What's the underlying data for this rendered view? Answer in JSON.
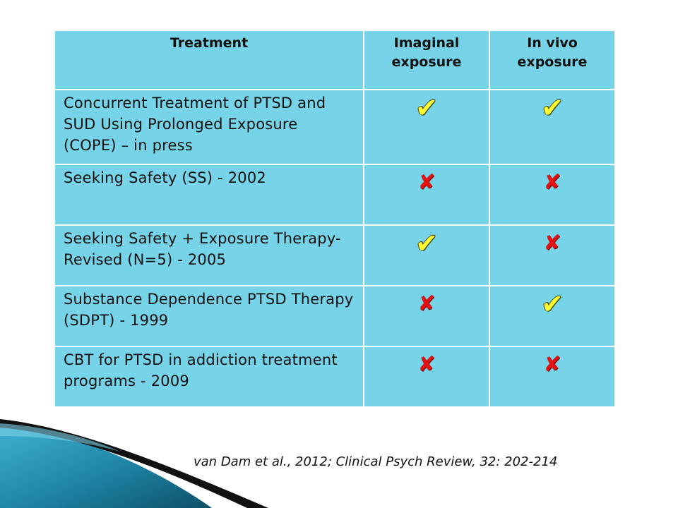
{
  "table": {
    "headers": [
      "Treatment",
      "Imaginal exposure",
      "In vivo exposure"
    ],
    "rows": [
      {
        "treatment": "Concurrent Treatment of PTSD and SUD Using Prolonged Exposure (COPE) – in press",
        "imaginal": "check",
        "in_vivo": "check"
      },
      {
        "treatment": "Seeking Safety (SS) - 2002",
        "imaginal": "cross",
        "in_vivo": "cross"
      },
      {
        "treatment": "Seeking Safety + Exposure Therapy-Revised (N=5) - 2005",
        "imaginal": "check",
        "in_vivo": "cross"
      },
      {
        "treatment": "Substance Dependence PTSD Therapy (SDPT) - 1999",
        "imaginal": "cross",
        "in_vivo": "check"
      },
      {
        "treatment": "CBT for PTSD in addiction treatment programs - 2009",
        "imaginal": "cross",
        "in_vivo": "cross"
      }
    ]
  },
  "marks": {
    "check_glyph": "✔",
    "cross_glyph": "✘",
    "check_color": "#ffff33",
    "cross_color": "#e01212"
  },
  "citation": "van Dam et al., 2012; Clinical Psych Review, 32: 202-214",
  "colors": {
    "cell_background": "#76d3e8",
    "decor_dark": "#0e4f66",
    "decor_light": "#3fb3d4"
  },
  "icons": {
    "check": "check-icon",
    "cross": "cross-icon"
  }
}
